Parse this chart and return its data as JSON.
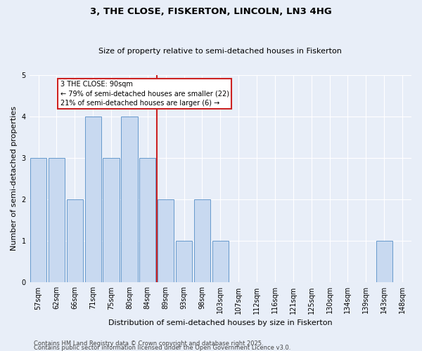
{
  "title1": "3, THE CLOSE, FISKERTON, LINCOLN, LN3 4HG",
  "title2": "Size of property relative to semi-detached houses in Fiskerton",
  "xlabel": "Distribution of semi-detached houses by size in Fiskerton",
  "ylabel": "Number of semi-detached properties",
  "categories": [
    "57sqm",
    "62sqm",
    "66sqm",
    "71sqm",
    "75sqm",
    "80sqm",
    "84sqm",
    "89sqm",
    "93sqm",
    "98sqm",
    "103sqm",
    "107sqm",
    "112sqm",
    "116sqm",
    "121sqm",
    "125sqm",
    "130sqm",
    "134sqm",
    "139sqm",
    "143sqm",
    "148sqm"
  ],
  "values": [
    3,
    3,
    2,
    4,
    3,
    4,
    3,
    2,
    1,
    2,
    1,
    0,
    0,
    0,
    0,
    0,
    0,
    0,
    0,
    1,
    0
  ],
  "bar_color": "#c8d9f0",
  "bar_edge_color": "#6699cc",
  "red_line_x": 7.0,
  "annotation_line1": "3 THE CLOSE: 90sqm",
  "annotation_line2": "← 79% of semi-detached houses are smaller (22)",
  "annotation_line3": "21% of semi-detached houses are larger (6) →",
  "annotation_box_facecolor": "#ffffff",
  "annotation_box_edgecolor": "#cc2222",
  "red_line_color": "#cc2222",
  "footer1": "Contains HM Land Registry data © Crown copyright and database right 2025.",
  "footer2": "Contains public sector information licensed under the Open Government Licence v3.0.",
  "ylim": [
    0,
    5
  ],
  "bg_color": "#e8eef8",
  "plot_bg_color": "#e8eef8",
  "title1_fontsize": 9.5,
  "title2_fontsize": 8,
  "ylabel_fontsize": 8,
  "xlabel_fontsize": 8,
  "tick_fontsize": 7,
  "footer_fontsize": 6,
  "annot_fontsize": 7
}
